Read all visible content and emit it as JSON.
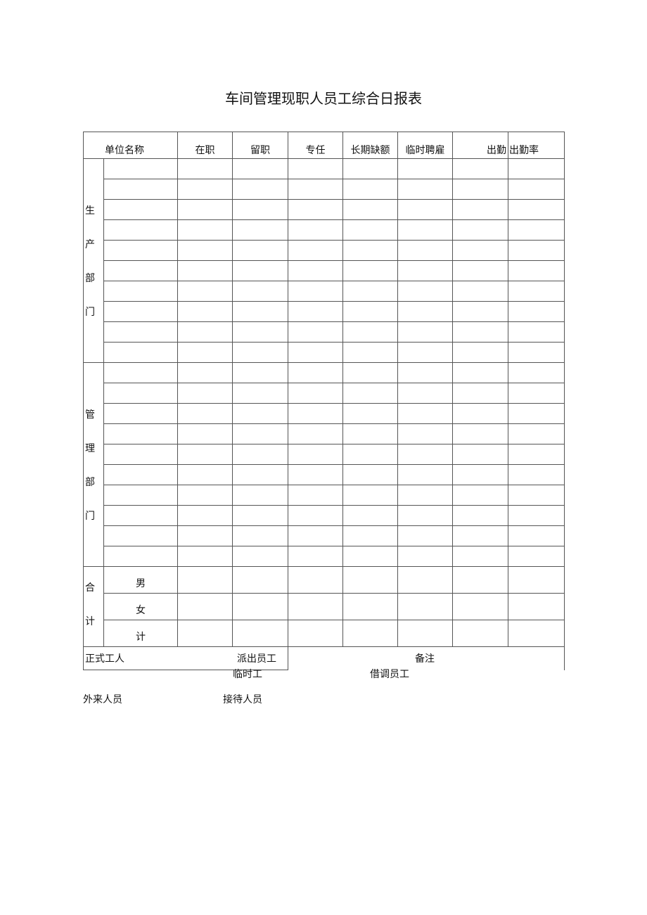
{
  "title": "车间管理现职人员工综合日报表",
  "table": {
    "headers": [
      "单位名称",
      "在职",
      "留职",
      "专任",
      "长期缺额",
      "临时聘雇",
      "出勤",
      "出勤率"
    ],
    "groups": [
      {
        "label": [
          "生",
          "产",
          "部",
          "门"
        ],
        "rows": 10
      },
      {
        "label": [
          "管",
          "理",
          "部",
          "门"
        ],
        "rows": 10
      }
    ],
    "totals": {
      "label": [
        "合",
        "计"
      ],
      "rows": [
        "男",
        "女",
        "计"
      ]
    },
    "footer": {
      "formal_workers": "正式工人",
      "dispatched": "派出员工",
      "remarks": "备注"
    }
  },
  "below": {
    "temporary": "临时工",
    "seconded": "借调员工",
    "outside_staff": "外来人员",
    "reception": "接待人员"
  },
  "colors": {
    "grid": "#555555",
    "text": "#111111"
  }
}
